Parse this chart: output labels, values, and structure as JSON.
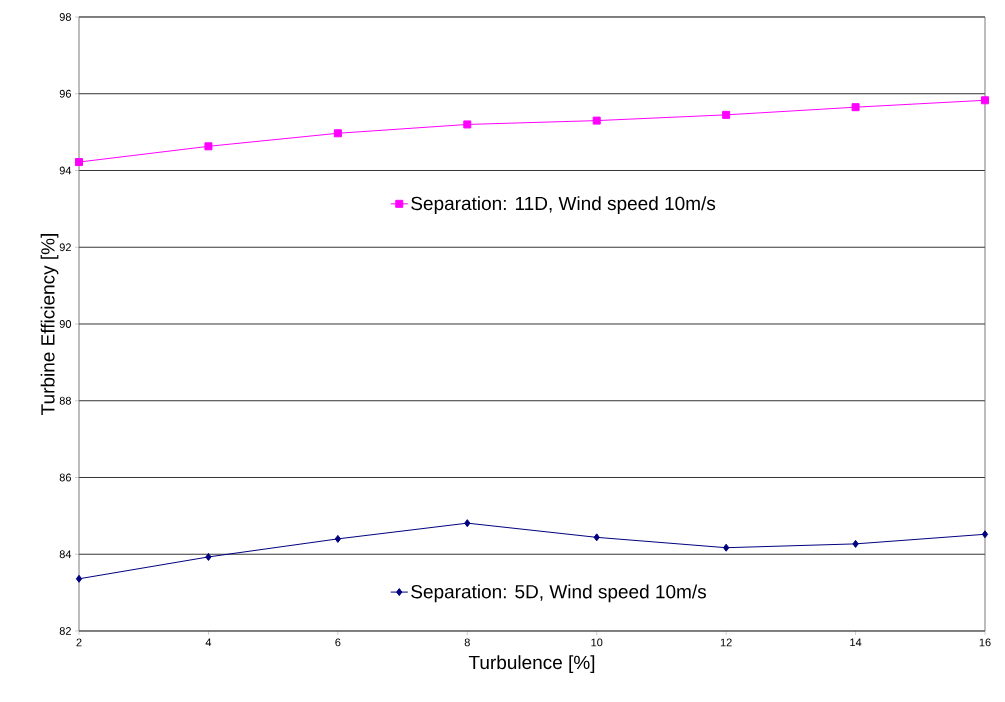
{
  "chart_data": {
    "type": "line",
    "xlabel": "Turbulence [%]",
    "ylabel": "Turbine Efficiency [%]",
    "x": [
      2,
      4,
      6,
      8,
      10,
      12,
      14,
      16
    ],
    "series": [
      {
        "name": "Separation: 11D, Wind speed 10m/s",
        "color": "#ff00ff",
        "marker": "square",
        "values": [
          94.22,
          94.63,
          94.97,
          95.2,
          95.3,
          95.45,
          95.65,
          95.83
        ]
      },
      {
        "name": "Separation: 5D, Wind speed 10m/s",
        "color": "#000080",
        "marker": "diamond",
        "values": [
          83.36,
          83.93,
          84.4,
          84.81,
          84.44,
          84.17,
          84.27,
          84.52
        ]
      }
    ],
    "xlim": [
      2,
      16
    ],
    "xticks": [
      2,
      4,
      6,
      8,
      10,
      12,
      14,
      16
    ],
    "ylim": [
      82,
      98
    ],
    "yticks": [
      82,
      84,
      86,
      88,
      90,
      92,
      94,
      96,
      98
    ],
    "grid": "y",
    "line_style": "solid",
    "legend": "center"
  }
}
